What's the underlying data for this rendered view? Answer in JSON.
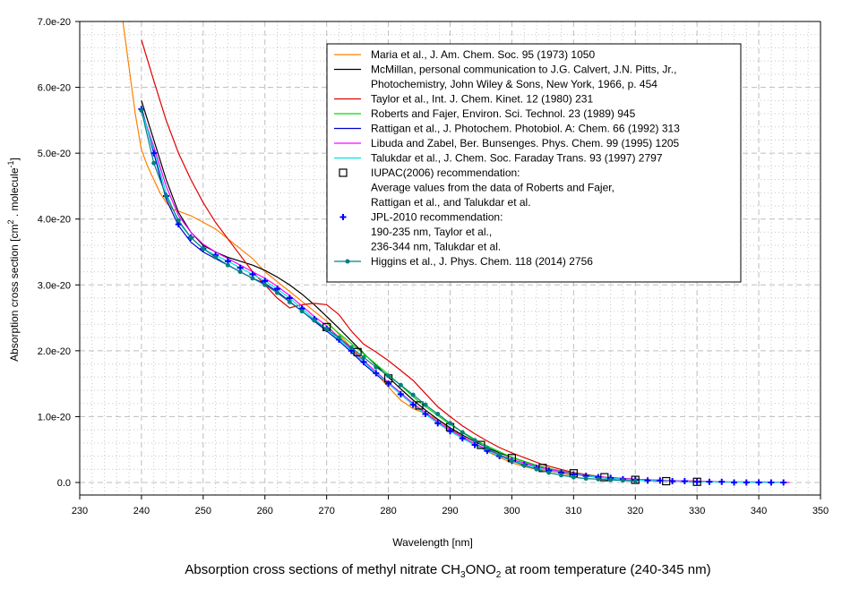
{
  "chart_data": {
    "type": "line",
    "title": "",
    "caption": {
      "prefix": "Absorption cross sections of methyl nitrate CH",
      "sub1": "3",
      "mid": "ONO",
      "sub2": "2",
      "suffix": " at room temperature (240-345 nm)"
    },
    "xlabel": "Wavelength [nm]",
    "ylabel": "Absorption cross section [cm2 . molecule-1]",
    "ylabel_parts": {
      "pre": "Absorption cross section [cm",
      "sup1": "2",
      "mid": " . molecule",
      "sup2": "-1",
      "post": "]"
    },
    "xlim": [
      230,
      350
    ],
    "ylim": [
      0,
      7e-20
    ],
    "y_unit_scale": 1e-20,
    "x_ticks": [
      230,
      240,
      250,
      260,
      270,
      280,
      290,
      300,
      310,
      320,
      330,
      340,
      350
    ],
    "x_tick_labels": [
      "230",
      "240",
      "250",
      "260",
      "270",
      "280",
      "290",
      "300",
      "310",
      "320",
      "330",
      "340",
      "350"
    ],
    "y_ticks": [
      0,
      1,
      2,
      3,
      4,
      5,
      6,
      7
    ],
    "y_tick_labels": [
      "0.0",
      "1.0e-20",
      "2.0e-20",
      "3.0e-20",
      "4.0e-20",
      "5.0e-20",
      "6.0e-20",
      "7.0e-20"
    ],
    "grid": true,
    "legend_position": "top-right",
    "series": [
      {
        "name": "Maria et al., J. Am. Chem. Soc. 95 (1973) 1050",
        "legend_lines": [
          "Maria et al., J. Am. Chem. Soc. 95 (1973) 1050"
        ],
        "color": "#ff8000",
        "style": "line",
        "x": [
          237,
          238,
          239,
          240,
          241,
          242,
          243,
          244,
          245,
          246,
          248,
          250,
          252,
          254,
          256,
          258,
          260,
          262,
          264,
          266,
          268,
          270,
          272,
          274,
          276,
          278,
          280,
          282,
          284,
          286,
          288,
          290,
          292,
          294,
          296,
          298,
          300,
          302,
          304,
          306,
          308,
          310
        ],
        "y": [
          7.0,
          6.3,
          5.6,
          5.05,
          4.8,
          4.6,
          4.4,
          4.25,
          4.15,
          4.12,
          4.05,
          3.95,
          3.85,
          3.7,
          3.55,
          3.4,
          3.2,
          3.05,
          2.9,
          2.75,
          2.6,
          2.45,
          2.25,
          2.05,
          1.85,
          1.65,
          1.45,
          1.25,
          1.12,
          1.05,
          0.95,
          0.82,
          0.7,
          0.58,
          0.47,
          0.38,
          0.3,
          0.24,
          0.2,
          0.18,
          0.14,
          0.1
        ]
      },
      {
        "name": "McMillan, personal communication to J.G. Calvert, J.N. Pitts, Jr., Photochemistry, John Wiley & Sons, New York, 1966, p. 454",
        "legend_lines": [
          "McMillan, personal communication to J.G. Calvert, J.N. Pitts, Jr.,",
          "Photochemistry, John Wiley & Sons, New York, 1966, p. 454"
        ],
        "color": "#000000",
        "style": "line",
        "x": [
          240,
          242,
          244,
          246,
          248,
          250,
          252,
          254,
          256,
          258,
          260,
          262,
          264,
          266,
          268,
          270,
          272,
          274,
          276,
          278,
          280,
          282,
          284,
          286,
          288,
          290,
          292,
          294,
          296,
          298,
          300,
          302,
          304,
          306,
          308,
          310,
          312,
          314,
          316,
          318,
          320,
          322,
          324
        ],
        "y": [
          5.8,
          5.2,
          4.6,
          4.1,
          3.8,
          3.6,
          3.5,
          3.42,
          3.36,
          3.3,
          3.22,
          3.12,
          3.0,
          2.86,
          2.7,
          2.52,
          2.34,
          2.15,
          1.96,
          1.78,
          1.6,
          1.42,
          1.25,
          1.1,
          0.96,
          0.83,
          0.72,
          0.62,
          0.53,
          0.45,
          0.38,
          0.32,
          0.26,
          0.21,
          0.17,
          0.13,
          0.1,
          0.08,
          0.06,
          0.05,
          0.04,
          0.03,
          0.02
        ]
      },
      {
        "name": "Taylor et al., Int. J. Chem. Kinet. 12 (1980) 231",
        "legend_lines": [
          "Taylor et al., Int. J. Chem. Kinet. 12 (1980) 231"
        ],
        "color": "#e00000",
        "style": "line",
        "x": [
          240,
          242,
          244,
          246,
          248,
          250,
          252,
          254,
          256,
          258,
          260,
          262,
          264,
          266,
          268,
          270,
          272,
          274,
          276,
          278,
          280,
          282,
          284,
          286,
          288,
          290,
          292,
          294,
          296,
          298,
          300,
          305,
          310,
          315,
          320,
          325,
          330
        ],
        "y": [
          6.72,
          6.1,
          5.5,
          5.0,
          4.6,
          4.25,
          3.95,
          3.7,
          3.45,
          3.2,
          3.0,
          2.8,
          2.65,
          2.7,
          2.72,
          2.7,
          2.55,
          2.3,
          2.1,
          1.98,
          1.85,
          1.7,
          1.55,
          1.35,
          1.15,
          1.0,
          0.86,
          0.74,
          0.63,
          0.53,
          0.45,
          0.27,
          0.15,
          0.08,
          0.05,
          0.03,
          0.02
        ]
      },
      {
        "name": "Roberts and Fajer, Environ. Sci. Technol. 23 (1989) 945",
        "legend_lines": [
          "Roberts and Fajer, Environ. Sci. Technol. 23 (1989) 945"
        ],
        "color": "#00dd00",
        "style": "line",
        "x": [
          270,
          275,
          280,
          285,
          290,
          295,
          300,
          305,
          310,
          315,
          320,
          325,
          330
        ],
        "y": [
          2.42,
          2.03,
          1.64,
          1.22,
          0.88,
          0.6,
          0.38,
          0.23,
          0.14,
          0.08,
          0.05,
          0.03,
          0.01
        ]
      },
      {
        "name": "Rattigan et al., J. Photochem. Photobiol. A: Chem. 66 (1992) 313",
        "legend_lines": [
          "Rattigan et al., J. Photochem. Photobiol. A: Chem. 66 (1992) 313"
        ],
        "color": "#0000cc",
        "style": "line",
        "x": [
          240,
          242,
          244,
          246,
          248,
          250,
          252,
          254,
          256,
          258,
          260,
          262,
          264,
          266,
          268,
          270,
          272,
          274,
          276,
          278,
          280,
          282,
          284,
          286,
          288,
          290,
          292,
          294,
          296,
          298,
          300,
          305,
          310,
          315,
          320,
          325,
          330
        ],
        "y": [
          5.7,
          5.0,
          4.3,
          3.9,
          3.65,
          3.5,
          3.4,
          3.3,
          3.2,
          3.1,
          3.02,
          2.9,
          2.75,
          2.6,
          2.45,
          2.3,
          2.15,
          1.98,
          1.8,
          1.64,
          1.5,
          1.34,
          1.18,
          1.04,
          0.9,
          0.78,
          0.67,
          0.57,
          0.48,
          0.4,
          0.33,
          0.2,
          0.12,
          0.07,
          0.04,
          0.02,
          0.01
        ]
      },
      {
        "name": "Libuda and Zabel, Ber. Bunsenges. Phys. Chem. 99 (1995) 1205",
        "legend_lines": [
          "Libuda and Zabel, Ber. Bunsenges. Phys. Chem. 99 (1995) 1205"
        ],
        "color": "#ff00ff",
        "style": "line",
        "x": [
          240,
          242,
          244,
          246,
          248,
          250,
          252,
          254,
          256,
          258,
          260,
          262,
          264,
          266,
          268,
          270,
          272,
          274,
          276,
          278,
          280,
          282,
          284,
          286,
          288,
          290,
          292,
          294,
          296,
          298,
          300,
          305,
          310,
          315,
          320,
          325,
          330,
          335,
          340,
          345
        ],
        "y": [
          5.65,
          5.1,
          4.5,
          4.05,
          3.8,
          3.62,
          3.5,
          3.4,
          3.3,
          3.2,
          3.1,
          2.98,
          2.84,
          2.68,
          2.52,
          2.38,
          2.2,
          2.02,
          1.85,
          1.68,
          1.52,
          1.36,
          1.2,
          1.06,
          0.92,
          0.8,
          0.69,
          0.59,
          0.5,
          0.42,
          0.35,
          0.22,
          0.13,
          0.08,
          0.05,
          0.03,
          0.02,
          0.01,
          0.01,
          0.0
        ]
      },
      {
        "name": "Talukdar et al., J. Chem. Soc. Faraday Trans. 93 (1997) 2797",
        "legend_lines": [
          "Talukdar et al., J. Chem. Soc. Faraday Trans. 93 (1997) 2797"
        ],
        "color": "#00e5e5",
        "style": "line",
        "x": [
          240,
          242,
          244,
          246,
          248,
          250,
          252,
          254,
          256,
          258,
          260,
          262,
          264,
          266,
          268,
          270,
          272,
          274,
          276,
          278,
          280,
          282,
          284,
          286,
          288,
          290,
          292,
          294,
          296,
          298,
          300,
          305,
          310,
          315,
          320,
          325,
          330,
          335,
          340,
          344
        ],
        "y": [
          5.65,
          5.05,
          4.4,
          3.95,
          3.72,
          3.55,
          3.45,
          3.36,
          3.26,
          3.16,
          3.06,
          2.94,
          2.8,
          2.64,
          2.48,
          2.33,
          2.17,
          2.0,
          1.83,
          1.66,
          1.5,
          1.34,
          1.18,
          1.04,
          0.9,
          0.78,
          0.67,
          0.57,
          0.48,
          0.4,
          0.33,
          0.2,
          0.12,
          0.07,
          0.04,
          0.02,
          0.01,
          0.01,
          0.0,
          0.0
        ]
      },
      {
        "name": "IUPAC(2006) recommendation: Average values from the data of Roberts and Fajer, Rattigan et al., and Talukdar et al.",
        "legend_lines": [
          "IUPAC(2006) recommendation:",
          "Average values from the data of Roberts and Fajer,",
          "Rattigan et al., and Talukdar et al."
        ],
        "color": "#000000",
        "style": "square",
        "x": [
          270,
          275,
          280,
          285,
          290,
          295,
          300,
          305,
          310,
          315,
          320,
          325,
          330
        ],
        "y": [
          2.36,
          1.98,
          1.58,
          1.17,
          0.84,
          0.57,
          0.37,
          0.22,
          0.14,
          0.08,
          0.04,
          0.02,
          0.01
        ]
      },
      {
        "name": "JPL-2010 recommendation: 190-235 nm, Taylor et al., 236-344 nm, Talukdar et al.",
        "legend_lines": [
          "JPL-2010 recommendation:",
          "190-235 nm, Taylor et al.,",
          "236-344 nm, Talukdar et al."
        ],
        "color": "#0000ff",
        "style": "plus",
        "x": [
          240,
          242,
          244,
          246,
          248,
          250,
          252,
          254,
          256,
          258,
          260,
          262,
          264,
          266,
          268,
          270,
          272,
          274,
          276,
          278,
          280,
          282,
          284,
          286,
          288,
          290,
          292,
          294,
          296,
          298,
          300,
          302,
          304,
          306,
          308,
          310,
          312,
          314,
          316,
          318,
          320,
          322,
          324,
          326,
          328,
          330,
          332,
          334,
          336,
          338,
          340,
          342,
          344
        ],
        "y": [
          5.67,
          5.0,
          4.35,
          3.92,
          3.72,
          3.55,
          3.45,
          3.36,
          3.26,
          3.16,
          3.06,
          2.94,
          2.8,
          2.64,
          2.48,
          2.33,
          2.17,
          2.0,
          1.83,
          1.66,
          1.5,
          1.34,
          1.18,
          1.04,
          0.9,
          0.78,
          0.67,
          0.57,
          0.48,
          0.4,
          0.33,
          0.27,
          0.22,
          0.18,
          0.15,
          0.12,
          0.1,
          0.08,
          0.07,
          0.05,
          0.04,
          0.03,
          0.03,
          0.02,
          0.02,
          0.01,
          0.01,
          0.01,
          0.0,
          0.0,
          0.0,
          0.0,
          0.0
        ]
      },
      {
        "name": "Higgins et al., J. Phys. Chem. 118 (2014) 2756",
        "legend_lines": [
          "Higgins et al., J. Phys. Chem. 118 (2014) 2756"
        ],
        "color": "#008080",
        "style": "line-dot",
        "x": [
          240,
          242,
          244,
          246,
          248,
          250,
          252,
          254,
          256,
          258,
          260,
          262,
          264,
          266,
          268,
          270,
          272,
          274,
          276,
          278,
          280,
          282,
          284,
          286,
          288,
          290,
          292,
          294,
          296,
          298,
          300,
          302,
          304,
          306,
          308,
          310,
          312,
          314,
          316,
          318,
          320
        ],
        "y": [
          5.65,
          4.85,
          4.35,
          3.98,
          3.72,
          3.55,
          3.42,
          3.3,
          3.2,
          3.1,
          3.0,
          2.88,
          2.74,
          2.6,
          2.46,
          2.33,
          2.2,
          2.05,
          1.9,
          1.75,
          1.62,
          1.48,
          1.33,
          1.18,
          1.04,
          0.9,
          0.76,
          0.64,
          0.52,
          0.42,
          0.33,
          0.26,
          0.2,
          0.15,
          0.11,
          0.08,
          0.06,
          0.05,
          0.04,
          0.03,
          0.02
        ]
      }
    ]
  }
}
